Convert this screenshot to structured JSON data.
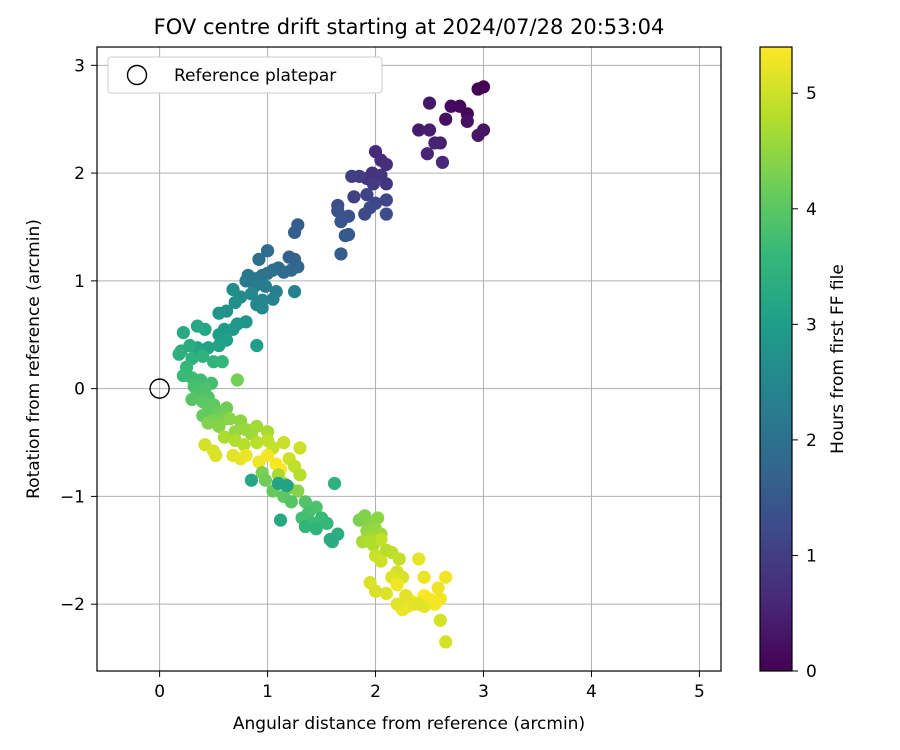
{
  "chart_data": {
    "type": "scatter",
    "title": "FOV centre drift starting at 2024/07/28 20:53:04",
    "xlabel": "Angular distance from reference (arcmin)",
    "ylabel": "Rotation from reference (arcmin)",
    "xlim": [
      -0.58,
      5.2
    ],
    "ylim": [
      -2.62,
      3.17
    ],
    "xticks": [
      0,
      1,
      2,
      3,
      4,
      5
    ],
    "yticks": [
      -2,
      -1,
      0,
      1,
      2,
      3
    ],
    "grid": true,
    "legend": {
      "position": "top-left",
      "entries": [
        "Reference platepar"
      ]
    },
    "reference_point": {
      "x": 0,
      "y": 0
    },
    "colorbar": {
      "label": "Hours from first FF file",
      "range": [
        0,
        5.4
      ],
      "ticks": [
        0,
        1,
        2,
        3,
        4,
        5
      ],
      "colormap": "viridis",
      "colors": [
        "#440154",
        "#482878",
        "#3e4989",
        "#31688e",
        "#26828e",
        "#1f9e89",
        "#35b779",
        "#6ece58",
        "#b5de2b",
        "#fde725"
      ]
    },
    "series": [
      {
        "points": [
          [
            3.0,
            2.8,
            0.0
          ],
          [
            2.95,
            2.78,
            0.04
          ],
          [
            2.85,
            2.55,
            0.08
          ],
          [
            2.78,
            2.62,
            0.12
          ],
          [
            2.7,
            2.62,
            0.16
          ],
          [
            2.65,
            2.5,
            0.2
          ],
          [
            2.85,
            2.48,
            0.24
          ],
          [
            3.0,
            2.4,
            0.28
          ],
          [
            2.95,
            2.35,
            0.32
          ],
          [
            2.5,
            2.65,
            0.36
          ],
          [
            2.4,
            2.4,
            0.4
          ],
          [
            2.5,
            2.4,
            0.44
          ],
          [
            2.6,
            2.28,
            0.48
          ],
          [
            2.55,
            2.28,
            0.52
          ],
          [
            2.48,
            2.18,
            0.56
          ],
          [
            2.62,
            2.1,
            0.6
          ],
          [
            2.0,
            2.2,
            0.64
          ],
          [
            2.05,
            2.12,
            0.68
          ],
          [
            2.1,
            2.08,
            0.72
          ],
          [
            1.97,
            2.0,
            0.76
          ],
          [
            1.92,
            1.95,
            0.8
          ],
          [
            2.05,
            1.98,
            0.84
          ],
          [
            2.1,
            1.9,
            0.88
          ],
          [
            1.98,
            1.9,
            0.92
          ],
          [
            1.85,
            1.97,
            0.96
          ],
          [
            1.78,
            1.97,
            1.0
          ],
          [
            1.8,
            1.78,
            1.04
          ],
          [
            1.92,
            1.8,
            1.08
          ],
          [
            2.1,
            1.75,
            1.12
          ],
          [
            2.0,
            1.72,
            1.16
          ],
          [
            1.95,
            1.68,
            1.2
          ],
          [
            1.9,
            1.62,
            1.24
          ],
          [
            2.1,
            1.62,
            1.28
          ],
          [
            1.65,
            1.7,
            1.32
          ],
          [
            1.65,
            1.65,
            1.36
          ],
          [
            1.75,
            1.6,
            1.4
          ],
          [
            1.68,
            1.55,
            1.44
          ],
          [
            1.72,
            1.42,
            1.48
          ],
          [
            1.75,
            1.43,
            1.52
          ],
          [
            1.68,
            1.25,
            1.56
          ],
          [
            1.28,
            1.52,
            1.6
          ],
          [
            1.25,
            1.45,
            1.64
          ],
          [
            1.2,
            1.22,
            1.68
          ],
          [
            1.25,
            1.2,
            1.72
          ],
          [
            1.28,
            1.13,
            1.76
          ],
          [
            1.22,
            1.1,
            1.8
          ],
          [
            1.15,
            1.08,
            1.84
          ],
          [
            1.1,
            1.12,
            1.88
          ],
          [
            1.0,
            1.28,
            1.92
          ],
          [
            0.92,
            1.2,
            1.96
          ],
          [
            1.05,
            1.1,
            2.0
          ],
          [
            1.0,
            1.07,
            2.04
          ],
          [
            0.95,
            1.05,
            2.08
          ],
          [
            0.88,
            1.02,
            2.12
          ],
          [
            0.82,
            1.05,
            2.16
          ],
          [
            0.8,
            1.0,
            2.2
          ],
          [
            0.88,
            0.95,
            2.24
          ],
          [
            0.98,
            0.95,
            2.28
          ],
          [
            1.08,
            0.9,
            2.32
          ],
          [
            1.25,
            0.9,
            2.36
          ],
          [
            1.05,
            0.83,
            2.4
          ],
          [
            0.95,
            0.82,
            2.44
          ],
          [
            0.9,
            0.78,
            2.48
          ],
          [
            0.95,
            0.75,
            2.52
          ],
          [
            0.85,
            0.88,
            2.56
          ],
          [
            0.75,
            0.85,
            2.6
          ],
          [
            0.68,
            0.92,
            2.64
          ],
          [
            0.7,
            0.8,
            2.68
          ],
          [
            0.62,
            0.72,
            2.72
          ],
          [
            0.55,
            0.7,
            2.76
          ],
          [
            0.8,
            0.62,
            2.8
          ],
          [
            0.72,
            0.6,
            2.84
          ],
          [
            0.68,
            0.55,
            2.88
          ],
          [
            0.6,
            0.55,
            2.92
          ],
          [
            0.55,
            0.5,
            2.96
          ],
          [
            0.9,
            0.4,
            3.0
          ],
          [
            0.62,
            0.45,
            3.04
          ],
          [
            0.55,
            0.4,
            3.08
          ],
          [
            0.45,
            0.38,
            3.12
          ],
          [
            0.35,
            0.38,
            3.16
          ],
          [
            0.42,
            0.55,
            3.2
          ],
          [
            0.35,
            0.58,
            3.24
          ],
          [
            0.22,
            0.52,
            3.28
          ],
          [
            0.28,
            0.4,
            3.32
          ],
          [
            0.2,
            0.35,
            3.36
          ],
          [
            0.18,
            0.32,
            3.4
          ],
          [
            0.3,
            0.28,
            3.44
          ],
          [
            0.4,
            0.3,
            3.48
          ],
          [
            0.5,
            0.25,
            3.52
          ],
          [
            0.58,
            0.25,
            3.56
          ],
          [
            0.25,
            0.2,
            3.6
          ],
          [
            0.22,
            0.12,
            3.64
          ],
          [
            0.3,
            0.1,
            3.68
          ],
          [
            0.38,
            0.08,
            3.72
          ],
          [
            0.48,
            0.05,
            3.76
          ],
          [
            0.32,
            0.02,
            3.8
          ],
          [
            0.42,
            0.0,
            3.84
          ],
          [
            0.35,
            -0.05,
            3.88
          ],
          [
            0.45,
            -0.08,
            3.92
          ],
          [
            0.3,
            -0.1,
            3.96
          ],
          [
            0.4,
            -0.12,
            4.0
          ],
          [
            0.5,
            -0.15,
            4.04
          ],
          [
            0.45,
            -0.2,
            4.08
          ],
          [
            0.4,
            -0.25,
            4.12
          ],
          [
            0.55,
            -0.22,
            4.16
          ],
          [
            0.62,
            -0.18,
            4.2
          ],
          [
            0.72,
            0.08,
            4.24
          ],
          [
            0.6,
            -0.28,
            4.28
          ],
          [
            0.5,
            -0.3,
            4.32
          ],
          [
            0.45,
            -0.32,
            4.36
          ],
          [
            0.55,
            -0.35,
            4.4
          ],
          [
            0.65,
            -0.28,
            4.44
          ],
          [
            0.75,
            -0.3,
            4.48
          ],
          [
            0.7,
            -0.4,
            4.52
          ],
          [
            0.8,
            -0.38,
            4.56
          ],
          [
            0.85,
            -0.42,
            4.6
          ],
          [
            0.9,
            -0.35,
            4.64
          ],
          [
            1.0,
            -0.4,
            4.68
          ],
          [
            0.6,
            -0.45,
            4.72
          ],
          [
            0.7,
            -0.48,
            4.76
          ],
          [
            0.78,
            -0.52,
            4.8
          ],
          [
            0.9,
            -0.5,
            4.84
          ],
          [
            1.0,
            -0.48,
            4.88
          ],
          [
            1.05,
            -0.55,
            4.92
          ],
          [
            1.15,
            -0.5,
            4.96
          ],
          [
            1.3,
            -0.55,
            5.0
          ],
          [
            0.42,
            -0.52,
            5.04
          ],
          [
            0.5,
            -0.58,
            5.08
          ],
          [
            0.52,
            -0.62,
            5.12
          ],
          [
            0.68,
            -0.62,
            5.16
          ],
          [
            0.75,
            -0.65,
            5.2
          ],
          [
            0.8,
            -0.62,
            5.24
          ],
          [
            0.92,
            -0.68,
            5.28
          ],
          [
            1.0,
            -0.62,
            5.32
          ],
          [
            1.08,
            -0.7,
            5.36
          ],
          [
            1.12,
            -0.75,
            5.4
          ],
          [
            1.2,
            -0.65,
            5.0
          ],
          [
            1.25,
            -0.72,
            4.9
          ],
          [
            1.3,
            -0.8,
            4.8
          ],
          [
            1.1,
            -0.8,
            4.7
          ],
          [
            1.15,
            -0.88,
            4.6
          ],
          [
            1.2,
            -0.92,
            4.5
          ],
          [
            1.28,
            -0.95,
            4.4
          ],
          [
            0.95,
            -0.78,
            4.3
          ],
          [
            0.98,
            -0.85,
            4.2
          ],
          [
            1.05,
            -0.95,
            4.1
          ],
          [
            1.15,
            -1.0,
            4.0
          ],
          [
            1.22,
            -1.05,
            3.95
          ],
          [
            1.35,
            -1.05,
            3.9
          ],
          [
            1.45,
            -1.1,
            3.85
          ],
          [
            1.38,
            -1.15,
            3.8
          ],
          [
            1.32,
            -1.2,
            3.75
          ],
          [
            1.42,
            -1.25,
            3.7
          ],
          [
            1.5,
            -1.2,
            3.65
          ],
          [
            1.55,
            -1.25,
            3.6
          ],
          [
            1.35,
            -1.28,
            3.55
          ],
          [
            1.45,
            -1.3,
            3.5
          ],
          [
            1.62,
            -0.88,
            3.45
          ],
          [
            1.6,
            -1.42,
            3.4
          ],
          [
            1.65,
            -1.35,
            3.35
          ],
          [
            1.58,
            -1.4,
            3.3
          ],
          [
            1.12,
            -1.22,
            3.25
          ],
          [
            0.85,
            -0.85,
            3.2
          ],
          [
            1.1,
            -0.88,
            3.15
          ],
          [
            1.18,
            -0.9,
            3.1
          ],
          [
            1.85,
            -1.22,
            4.3
          ],
          [
            1.9,
            -1.18,
            4.35
          ],
          [
            1.95,
            -1.25,
            4.4
          ],
          [
            2.02,
            -1.2,
            4.45
          ],
          [
            1.92,
            -1.32,
            4.5
          ],
          [
            2.0,
            -1.3,
            4.55
          ],
          [
            2.05,
            -1.35,
            4.6
          ],
          [
            1.95,
            -1.38,
            4.65
          ],
          [
            1.88,
            -1.42,
            4.7
          ],
          [
            1.98,
            -1.45,
            4.75
          ],
          [
            2.1,
            -1.5,
            4.8
          ],
          [
            2.15,
            -1.52,
            4.85
          ],
          [
            2.22,
            -1.58,
            4.9
          ],
          [
            2.0,
            -1.55,
            4.95
          ],
          [
            2.05,
            -1.6,
            5.0
          ],
          [
            2.2,
            -1.7,
            5.05
          ],
          [
            2.25,
            -1.75,
            5.1
          ],
          [
            2.15,
            -1.75,
            5.15
          ],
          [
            2.4,
            -1.58,
            5.2
          ],
          [
            2.45,
            -1.75,
            5.25
          ],
          [
            2.2,
            -1.82,
            5.3
          ],
          [
            2.3,
            -1.95,
            5.35
          ],
          [
            2.35,
            -1.98,
            5.4
          ],
          [
            2.45,
            -1.92,
            5.38
          ],
          [
            2.5,
            -1.95,
            5.36
          ],
          [
            2.55,
            -2.0,
            5.34
          ],
          [
            2.6,
            -1.95,
            5.32
          ],
          [
            2.65,
            -1.75,
            5.3
          ],
          [
            2.58,
            -1.85,
            5.28
          ],
          [
            2.25,
            -2.05,
            5.26
          ],
          [
            2.3,
            -2.02,
            5.24
          ],
          [
            2.35,
            -2.0,
            5.22
          ],
          [
            2.45,
            -2.02,
            5.2
          ],
          [
            2.2,
            -2.0,
            5.18
          ],
          [
            2.28,
            -1.92,
            5.16
          ],
          [
            2.4,
            -2.0,
            5.14
          ],
          [
            2.1,
            -1.9,
            5.12
          ],
          [
            2.0,
            -1.88,
            5.1
          ],
          [
            1.95,
            -1.8,
            5.08
          ],
          [
            2.6,
            -2.15,
            5.06
          ],
          [
            2.65,
            -2.35,
            5.04
          ],
          [
            2.05,
            -1.4,
            4.9
          ],
          [
            1.95,
            -1.42,
            4.75
          ]
        ]
      }
    ]
  }
}
